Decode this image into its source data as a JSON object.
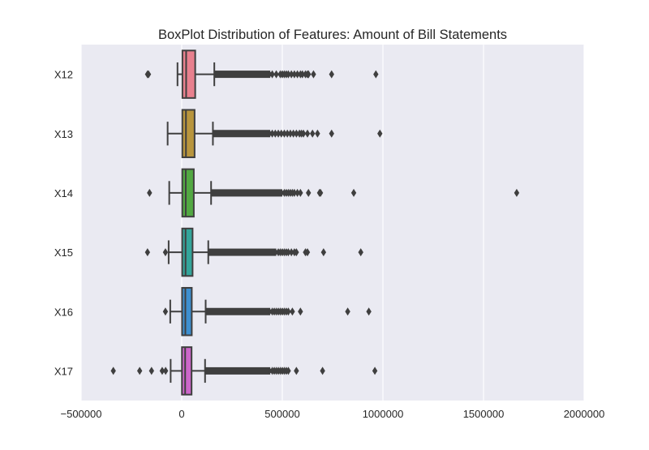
{
  "chart_data": {
    "type": "boxplot",
    "orientation": "horizontal",
    "title": "BoxPlot Distribution of Features: Amount of Bill Statements",
    "xlabel": "",
    "ylabel": "",
    "xlim": [
      -500000,
      2000000
    ],
    "x_ticks": [
      -500000,
      0,
      500000,
      1000000,
      1500000,
      2000000
    ],
    "x_tick_labels": [
      "−500000",
      "0",
      "500000",
      "1000000",
      "1500000",
      "2000000"
    ],
    "grid": true,
    "background": "#eaeaf2",
    "grid_color": "#ffffff",
    "box_edge_color": "#3f3f3f",
    "categories": [
      "X12",
      "X13",
      "X14",
      "X15",
      "X16",
      "X17"
    ],
    "boxes": [
      {
        "label": "X12",
        "color": "#e8808e",
        "q1": 3500,
        "median": 22000,
        "q3": 67000,
        "whisker_low": -21000,
        "whisker_high": 162000,
        "outliers_low": [
          -170000,
          -165000
        ],
        "outlier_dense_range": [
          162000,
          440000
        ],
        "outliers_high": [
          450000,
          470000,
          490000,
          500000,
          510000,
          520000,
          530000,
          545000,
          560000,
          575000,
          590000,
          600000,
          615000,
          625000,
          630000,
          655000,
          745000,
          965000
        ]
      },
      {
        "label": "X13",
        "color": "#b8953d",
        "q1": 3000,
        "median": 21000,
        "q3": 64000,
        "whisker_low": -70000,
        "whisker_high": 155000,
        "outliers_low": [],
        "outlier_dense_range": [
          155000,
          440000
        ],
        "outliers_high": [
          450000,
          465000,
          480000,
          495000,
          510000,
          525000,
          540000,
          555000,
          570000,
          585000,
          595000,
          605000,
          625000,
          650000,
          675000,
          745000,
          985000
        ]
      },
      {
        "label": "X14",
        "color": "#52a842",
        "q1": 2700,
        "median": 20000,
        "q3": 60000,
        "whisker_low": -62000,
        "whisker_high": 146000,
        "outliers_low": [
          -160000
        ],
        "outlier_dense_range": [
          146000,
          500000
        ],
        "outliers_high": [
          510000,
          520000,
          530000,
          540000,
          550000,
          560000,
          575000,
          590000,
          630000,
          685000,
          690000,
          855000,
          1665000
        ]
      },
      {
        "label": "X15",
        "color": "#33a59a",
        "q1": 2300,
        "median": 19000,
        "q3": 54000,
        "whisker_low": -65000,
        "whisker_high": 132000,
        "outliers_low": [
          -170000,
          -81000
        ],
        "outlier_dense_range": [
          132000,
          470000
        ],
        "outliers_high": [
          480000,
          490000,
          500000,
          510000,
          520000,
          530000,
          545000,
          560000,
          570000,
          615000,
          625000,
          705000,
          890000
        ]
      },
      {
        "label": "X16",
        "color": "#3d8fcf",
        "q1": 1800,
        "median": 18000,
        "q3": 50000,
        "whisker_low": -57000,
        "whisker_high": 119000,
        "outliers_low": [
          -81000
        ],
        "outlier_dense_range": [
          119000,
          440000
        ],
        "outliers_high": [
          450000,
          460000,
          470000,
          480000,
          490000,
          500000,
          510000,
          520000,
          530000,
          550000,
          590000,
          825000,
          930000
        ]
      },
      {
        "label": "X17",
        "color": "#cc66c9",
        "q1": 1200,
        "median": 17000,
        "q3": 49000,
        "whisker_low": -55000,
        "whisker_high": 116000,
        "outliers_low": [
          -340000,
          -209000,
          -150000,
          -97000,
          -80000
        ],
        "outlier_dense_range": [
          116000,
          440000
        ],
        "outliers_high": [
          450000,
          460000,
          470000,
          480000,
          490000,
          500000,
          510000,
          520000,
          530000,
          570000,
          700000,
          960000
        ]
      }
    ]
  }
}
